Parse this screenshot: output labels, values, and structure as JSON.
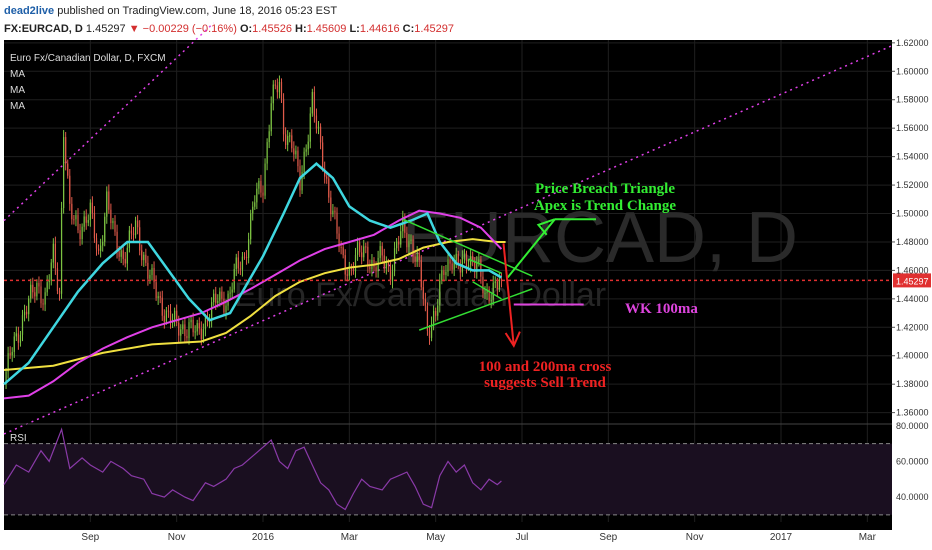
{
  "header": {
    "author": "dead2live",
    "published": "published on TradingView.com, June 18, 2016 05:23 EST",
    "symbol": "FX:EURCAD, D",
    "last": "1.45297",
    "change": "▼ −0.00229 (−0.16%)",
    "o_label": "O:",
    "o_value": "1.45526",
    "h_label": "H:",
    "h_value": "1.45609",
    "l_label": "L:",
    "l_value": "1.44616",
    "c_label": "C:",
    "c_value": "1.45297"
  },
  "colors": {
    "background": "#000000",
    "up_candle": "#7cc242",
    "down_candle": "#e05a4a",
    "ma_fast": "#3fd7e0",
    "ma_mid": "#e040e8",
    "ma_slow": "#f0e040",
    "channel": "#e040e8",
    "trend_lines": "#33dd33",
    "annotation_green": "#33ee33",
    "annotation_red": "#ee2222",
    "wk_line": "#dd44dd",
    "rsi_line": "#8a3aa8",
    "last_price_tag": "#e03030",
    "grid": "#1f1f1f",
    "axis_text": "#cccccc",
    "header_blue": "#1e5fa8",
    "header_red": "#d32f2f"
  },
  "chart_data": [
    {
      "type": "candlestick",
      "legend": [
        "Euro Fx/Canadian Dollar, D, FXCM",
        "MA",
        "MA",
        "MA"
      ],
      "watermark": "EURCAD, D",
      "watermark_sub": "Euro Fx/Canadian Dollar",
      "x_tick_labels": [
        "Sep",
        "Nov",
        "2016",
        "Mar",
        "May",
        "Jul",
        "Sep",
        "Nov",
        "2017",
        "Mar"
      ],
      "x_tick_index": [
        30,
        72,
        114,
        156,
        198,
        240,
        282,
        324,
        366,
        408
      ],
      "x_index_range": [
        -12,
        420
      ],
      "y_tick_labels": [
        "1.36000",
        "1.38000",
        "1.40000",
        "1.42000",
        "1.44000",
        "1.46000",
        "1.48000",
        "1.50000",
        "1.52000",
        "1.54000",
        "1.56000",
        "1.58000",
        "1.60000",
        "1.62000"
      ],
      "ylim": [
        1.352,
        1.622
      ],
      "last_price": 1.45297,
      "last_price_label": "1.45297",
      "price_anchors": [
        [
          -12,
          1.38
        ],
        [
          -8,
          1.405
        ],
        [
          -2,
          1.43
        ],
        [
          4,
          1.45
        ],
        [
          8,
          1.44
        ],
        [
          12,
          1.47
        ],
        [
          15,
          1.445
        ],
        [
          17,
          1.56
        ],
        [
          20,
          1.5
        ],
        [
          24,
          1.49
        ],
        [
          30,
          1.5
        ],
        [
          34,
          1.47
        ],
        [
          38,
          1.51
        ],
        [
          42,
          1.48
        ],
        [
          46,
          1.47
        ],
        [
          52,
          1.49
        ],
        [
          56,
          1.47
        ],
        [
          58,
          1.46
        ],
        [
          63,
          1.44
        ],
        [
          67,
          1.43
        ],
        [
          72,
          1.42
        ],
        [
          78,
          1.42
        ],
        [
          82,
          1.415
        ],
        [
          88,
          1.43
        ],
        [
          92,
          1.44
        ],
        [
          97,
          1.44
        ],
        [
          101,
          1.46
        ],
        [
          105,
          1.47
        ],
        [
          110,
          1.51
        ],
        [
          114,
          1.52
        ],
        [
          118,
          1.58
        ],
        [
          122,
          1.59
        ],
        [
          124,
          1.56
        ],
        [
          128,
          1.55
        ],
        [
          132,
          1.52
        ],
        [
          136,
          1.56
        ],
        [
          138,
          1.58
        ],
        [
          140,
          1.56
        ],
        [
          144,
          1.53
        ],
        [
          148,
          1.5
        ],
        [
          152,
          1.47
        ],
        [
          156,
          1.46
        ],
        [
          160,
          1.47
        ],
        [
          164,
          1.475
        ],
        [
          168,
          1.46
        ],
        [
          172,
          1.47
        ],
        [
          176,
          1.46
        ],
        [
          182,
          1.49
        ],
        [
          186,
          1.48
        ],
        [
          190,
          1.46
        ],
        [
          194,
          1.42
        ],
        [
          198,
          1.43
        ],
        [
          202,
          1.46
        ],
        [
          206,
          1.47
        ],
        [
          210,
          1.46
        ],
        [
          214,
          1.47
        ],
        [
          218,
          1.465
        ],
        [
          222,
          1.44
        ],
        [
          226,
          1.45
        ],
        [
          230,
          1.45297
        ]
      ],
      "ma_fast": [
        [
          -12,
          1.38
        ],
        [
          0,
          1.395
        ],
        [
          12,
          1.42
        ],
        [
          24,
          1.445
        ],
        [
          36,
          1.465
        ],
        [
          48,
          1.48
        ],
        [
          58,
          1.48
        ],
        [
          68,
          1.46
        ],
        [
          78,
          1.44
        ],
        [
          88,
          1.425
        ],
        [
          98,
          1.43
        ],
        [
          106,
          1.45
        ],
        [
          114,
          1.47
        ],
        [
          124,
          1.5
        ],
        [
          132,
          1.525
        ],
        [
          140,
          1.535
        ],
        [
          148,
          1.525
        ],
        [
          156,
          1.505
        ],
        [
          166,
          1.495
        ],
        [
          176,
          1.49
        ],
        [
          186,
          1.495
        ],
        [
          194,
          1.5
        ],
        [
          200,
          1.48
        ],
        [
          208,
          1.465
        ],
        [
          216,
          1.46
        ],
        [
          224,
          1.46
        ],
        [
          230,
          1.455
        ]
      ],
      "ma_mid": [
        [
          -12,
          1.37
        ],
        [
          0,
          1.372
        ],
        [
          12,
          1.382
        ],
        [
          24,
          1.395
        ],
        [
          36,
          1.405
        ],
        [
          48,
          1.413
        ],
        [
          60,
          1.42
        ],
        [
          72,
          1.425
        ],
        [
          84,
          1.43
        ],
        [
          96,
          1.438
        ],
        [
          108,
          1.447
        ],
        [
          120,
          1.457
        ],
        [
          132,
          1.467
        ],
        [
          144,
          1.475
        ],
        [
          156,
          1.48
        ],
        [
          168,
          1.485
        ],
        [
          180,
          1.495
        ],
        [
          190,
          1.502
        ],
        [
          200,
          1.5
        ],
        [
          210,
          1.497
        ],
        [
          220,
          1.49
        ],
        [
          230,
          1.475
        ]
      ],
      "ma_slow": [
        [
          -12,
          1.39
        ],
        [
          12,
          1.393
        ],
        [
          36,
          1.402
        ],
        [
          60,
          1.408
        ],
        [
          84,
          1.41
        ],
        [
          96,
          1.416
        ],
        [
          108,
          1.428
        ],
        [
          120,
          1.442
        ],
        [
          132,
          1.452
        ],
        [
          144,
          1.458
        ],
        [
          156,
          1.462
        ],
        [
          168,
          1.464
        ],
        [
          180,
          1.468
        ],
        [
          192,
          1.476
        ],
        [
          204,
          1.48
        ],
        [
          216,
          1.482
        ],
        [
          228,
          1.48
        ],
        [
          232,
          1.48
        ]
      ],
      "annotations": [
        {
          "text": "Price Breach Triangle",
          "color": "#33ee33"
        },
        {
          "text": "Apex is Trend Change",
          "color": "#33ee33"
        },
        {
          "text": "WK 100ma",
          "color": "#dd44dd"
        },
        {
          "text": "100 and 200ma cross",
          "color": "#ee2222"
        },
        {
          "text": "suggests Sell Trend",
          "color": "#ee2222"
        }
      ]
    },
    {
      "type": "line",
      "name": "RSI",
      "y_tick_labels": [
        "40.0000",
        "60.0000",
        "80.0000"
      ],
      "ylim": [
        26,
        81
      ],
      "bands": [
        30,
        70
      ],
      "values": [
        [
          -12,
          47
        ],
        [
          -6,
          58
        ],
        [
          0,
          54
        ],
        [
          6,
          66
        ],
        [
          10,
          60
        ],
        [
          16,
          78
        ],
        [
          20,
          56
        ],
        [
          26,
          62
        ],
        [
          30,
          58
        ],
        [
          36,
          54
        ],
        [
          40,
          60
        ],
        [
          46,
          56
        ],
        [
          50,
          52
        ],
        [
          56,
          50
        ],
        [
          60,
          42
        ],
        [
          66,
          40
        ],
        [
          70,
          44
        ],
        [
          76,
          40
        ],
        [
          80,
          38
        ],
        [
          86,
          48
        ],
        [
          90,
          46
        ],
        [
          96,
          50
        ],
        [
          100,
          56
        ],
        [
          104,
          58
        ],
        [
          110,
          64
        ],
        [
          114,
          68
        ],
        [
          118,
          72
        ],
        [
          122,
          60
        ],
        [
          126,
          56
        ],
        [
          130,
          66
        ],
        [
          134,
          68
        ],
        [
          138,
          58
        ],
        [
          142,
          48
        ],
        [
          146,
          44
        ],
        [
          150,
          36
        ],
        [
          154,
          33
        ],
        [
          158,
          42
        ],
        [
          162,
          50
        ],
        [
          166,
          46
        ],
        [
          172,
          44
        ],
        [
          176,
          50
        ],
        [
          180,
          52
        ],
        [
          184,
          54
        ],
        [
          188,
          46
        ],
        [
          192,
          36
        ],
        [
          196,
          34
        ],
        [
          200,
          52
        ],
        [
          204,
          60
        ],
        [
          208,
          54
        ],
        [
          212,
          58
        ],
        [
          216,
          48
        ],
        [
          220,
          44
        ],
        [
          224,
          50
        ],
        [
          228,
          47
        ],
        [
          230,
          49
        ]
      ]
    }
  ]
}
